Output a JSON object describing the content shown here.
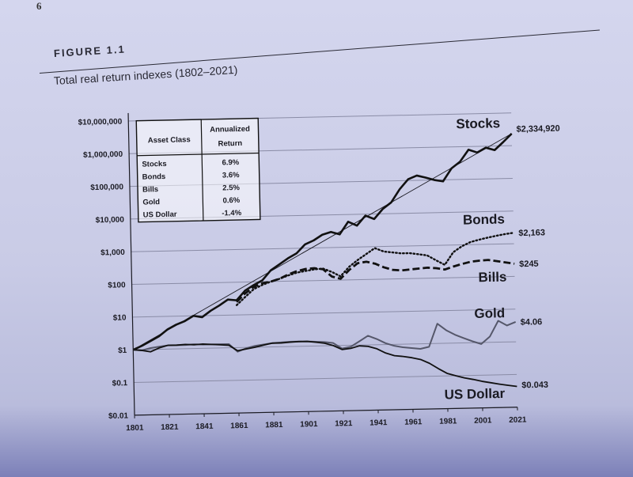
{
  "page_number": "6",
  "figure_label": "FIGURE 1.1",
  "figure_title": "Total real return indexes (1802–2021)",
  "chart_data": {
    "type": "line",
    "title": "Total real return indexes (1802–2021)",
    "y_scale": "log",
    "ylim": [
      0.01,
      10000000
    ],
    "xlim": [
      1801,
      2021
    ],
    "y_tick_labels": [
      "$0.01",
      "$0.1",
      "$1",
      "$10",
      "$100",
      "$1,000",
      "$10,000",
      "$100,000",
      "$1,000,000",
      "$10,000,000"
    ],
    "y_tick_values": [
      0.01,
      0.1,
      1,
      10,
      100,
      1000,
      10000,
      100000,
      1000000,
      10000000
    ],
    "x_tick_labels": [
      "1801",
      "1821",
      "1841",
      "1861",
      "1881",
      "1901",
      "1921",
      "1941",
      "1961",
      "1981",
      "2001",
      "2021"
    ],
    "x_tick_values": [
      1801,
      1821,
      1841,
      1861,
      1881,
      1901,
      1921,
      1941,
      1961,
      1981,
      2001,
      2021
    ],
    "grid": true,
    "series": [
      {
        "name": "Stocks",
        "end_label": "$2,334,920",
        "style": "solid-thick",
        "x": [
          1801,
          1806,
          1811,
          1816,
          1821,
          1826,
          1831,
          1836,
          1841,
          1846,
          1851,
          1856,
          1861,
          1866,
          1871,
          1876,
          1881,
          1886,
          1891,
          1896,
          1901,
          1906,
          1911,
          1916,
          1921,
          1926,
          1931,
          1936,
          1941,
          1946,
          1951,
          1956,
          1961,
          1966,
          1971,
          1976,
          1981,
          1986,
          1991,
          1996,
          2001,
          2006,
          2011,
          2016,
          2021
        ],
        "y": [
          1,
          1.3,
          1.8,
          2.5,
          4,
          5.5,
          7,
          10,
          9,
          14,
          20,
          30,
          28,
          55,
          80,
          110,
          220,
          330,
          500,
          700,
          1300,
          1700,
          2500,
          3000,
          2500,
          6000,
          4500,
          9000,
          7000,
          14000,
          22000,
          55000,
          110000,
          140000,
          120000,
          100000,
          90000,
          220000,
          350000,
          800000,
          650000,
          900000,
          750000,
          1300000,
          2334920
        ]
      },
      {
        "name": "Bonds",
        "end_label": "$2,163",
        "style": "dotted",
        "x": [
          1861,
          1866,
          1871,
          1876,
          1881,
          1886,
          1891,
          1896,
          1901,
          1906,
          1911,
          1916,
          1921,
          1926,
          1931,
          1936,
          1941,
          1946,
          1951,
          1956,
          1961,
          1966,
          1971,
          1976,
          1981,
          1986,
          1991,
          1996,
          2001,
          2006,
          2011,
          2016,
          2021
        ],
        "y": [
          20,
          35,
          60,
          80,
          100,
          120,
          150,
          180,
          200,
          220,
          230,
          180,
          130,
          250,
          400,
          600,
          900,
          700,
          650,
          600,
          600,
          550,
          500,
          350,
          250,
          600,
          900,
          1200,
          1400,
          1600,
          1800,
          2000,
          2163
        ]
      },
      {
        "name": "Bills",
        "end_label": "$245",
        "style": "dashed",
        "x": [
          1861,
          1866,
          1871,
          1876,
          1881,
          1886,
          1891,
          1896,
          1901,
          1906,
          1911,
          1916,
          1921,
          1926,
          1931,
          1936,
          1941,
          1946,
          1951,
          1956,
          1961,
          1966,
          1971,
          1976,
          1981,
          1986,
          1991,
          1996,
          2001,
          2006,
          2011,
          2016,
          2021
        ],
        "y": [
          25,
          45,
          70,
          90,
          100,
          120,
          160,
          200,
          230,
          240,
          220,
          130,
          110,
          200,
          320,
          350,
          300,
          230,
          190,
          180,
          190,
          200,
          210,
          200,
          180,
          220,
          260,
          300,
          320,
          330,
          300,
          270,
          245
        ]
      },
      {
        "name": "Gold",
        "end_label": "$4.06",
        "style": "solid-grey",
        "x": [
          1801,
          1806,
          1811,
          1816,
          1821,
          1826,
          1831,
          1836,
          1841,
          1846,
          1851,
          1856,
          1861,
          1866,
          1871,
          1876,
          1881,
          1886,
          1891,
          1896,
          1901,
          1906,
          1911,
          1916,
          1921,
          1926,
          1931,
          1936,
          1941,
          1946,
          1951,
          1956,
          1961,
          1966,
          1971,
          1976,
          1981,
          1986,
          1991,
          1996,
          2001,
          2006,
          2011,
          2016,
          2021
        ],
        "y": [
          1,
          0.95,
          1.1,
          1.2,
          1.3,
          1.3,
          1.3,
          1.35,
          1.3,
          1.3,
          1.3,
          1.3,
          0.75,
          0.95,
          1.1,
          1.2,
          1.3,
          1.35,
          1.4,
          1.4,
          1.4,
          1.35,
          1.3,
          1.2,
          0.8,
          0.9,
          1.3,
          1.9,
          1.5,
          1.1,
          0.9,
          0.8,
          0.75,
          0.7,
          0.8,
          4.0,
          2.5,
          1.8,
          1.4,
          1.1,
          0.9,
          1.5,
          4.5,
          3.2,
          4.06
        ]
      },
      {
        "name": "US Dollar",
        "end_label": "$0.043",
        "style": "solid",
        "x": [
          1801,
          1806,
          1811,
          1816,
          1821,
          1826,
          1831,
          1836,
          1841,
          1846,
          1851,
          1856,
          1861,
          1866,
          1871,
          1876,
          1881,
          1886,
          1891,
          1896,
          1901,
          1906,
          1911,
          1916,
          1921,
          1926,
          1931,
          1936,
          1941,
          1946,
          1951,
          1956,
          1961,
          1966,
          1971,
          1976,
          1981,
          1986,
          1991,
          1996,
          2001,
          2006,
          2011,
          2016,
          2021
        ],
        "y": [
          1,
          0.95,
          0.85,
          1.1,
          1.3,
          1.3,
          1.35,
          1.3,
          1.35,
          1.3,
          1.25,
          1.2,
          0.8,
          0.9,
          1.0,
          1.15,
          1.3,
          1.3,
          1.35,
          1.4,
          1.4,
          1.3,
          1.2,
          1.0,
          0.75,
          0.8,
          0.95,
          0.9,
          0.75,
          0.55,
          0.45,
          0.42,
          0.38,
          0.33,
          0.25,
          0.17,
          0.12,
          0.1,
          0.085,
          0.075,
          0.065,
          0.058,
          0.052,
          0.047,
          0.043
        ]
      }
    ]
  },
  "table": {
    "headers": [
      "Asset Class",
      "Annualized Return"
    ],
    "rows": [
      {
        "asset": "Stocks",
        "return": "6.9%"
      },
      {
        "asset": "Bonds",
        "return": "3.6%"
      },
      {
        "asset": "Bills",
        "return": "2.5%"
      },
      {
        "asset": "Gold",
        "return": "0.6%"
      },
      {
        "asset": "US Dollar",
        "return": "-1.4%"
      }
    ]
  }
}
